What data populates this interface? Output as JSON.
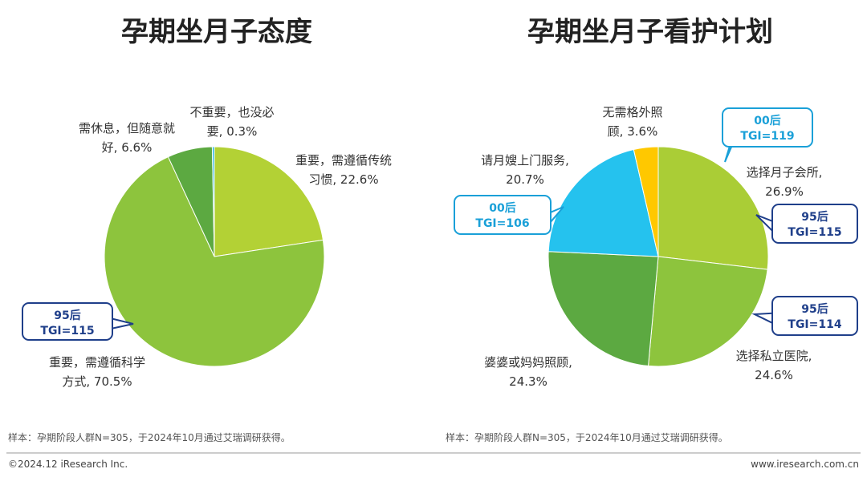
{
  "chart_data": [
    {
      "type": "pie",
      "title": "孕期坐月子态度",
      "categories": [
        "重要，需遵循传统习惯",
        "重要，需遵循科学方式",
        "需休息，但随意就好",
        "不重要，也没必要"
      ],
      "values": [
        22.6,
        70.5,
        6.6,
        0.3
      ],
      "value_labels": [
        "重要，需遵循传统习惯, 22.6%",
        "重要，需遵循科学方式, 70.5%",
        "需休息，但随意就好, 6.6%",
        "不重要，也没必要, 0.3%"
      ],
      "colors": [
        "#b3d135",
        "#8dc43d",
        "#5ca941",
        "#27b4e6"
      ],
      "annotations": [
        {
          "lines": [
            "95后",
            "TGI=115"
          ],
          "color": "#1f3f8a"
        }
      ],
      "note": "样本：孕期阶段人群N=305，于2024年10月通过艾瑞调研获得。"
    },
    {
      "type": "pie",
      "title": "孕期坐月子看护计划",
      "categories": [
        "选择月子会所",
        "选择私立医院",
        "婆婆或妈妈照顾",
        "请月嫂上门服务",
        "无需格外照顾"
      ],
      "values": [
        26.9,
        24.6,
        24.3,
        20.7,
        3.6
      ],
      "value_labels": [
        "选择月子会所, 26.9%",
        "选择私立医院, 24.6%",
        "婆婆或妈妈照顾, 24.3%",
        "请月嫂上门服务, 20.7%",
        "无需格外照顾, 3.6%"
      ],
      "colors": [
        "#aacd36",
        "#8dc43d",
        "#5ca941",
        "#25c2ee",
        "#ffc800"
      ],
      "annotations": [
        {
          "lines": [
            "00后",
            "TGI=119"
          ],
          "color": "#1aa0d8"
        },
        {
          "lines": [
            "95后",
            "TGI=115"
          ],
          "color": "#1f3f8a"
        },
        {
          "lines": [
            "95后",
            "TGI=114"
          ],
          "color": "#1f3f8a"
        },
        {
          "lines": [
            "00后",
            "TGI=106"
          ],
          "color": "#1aa0d8"
        }
      ],
      "note": "样本：孕期阶段人群N=305，于2024年10月通过艾瑞调研获得。"
    }
  ],
  "footer": {
    "left": "©2024.12 iResearch Inc.",
    "right": "www.iresearch.com.cn"
  }
}
